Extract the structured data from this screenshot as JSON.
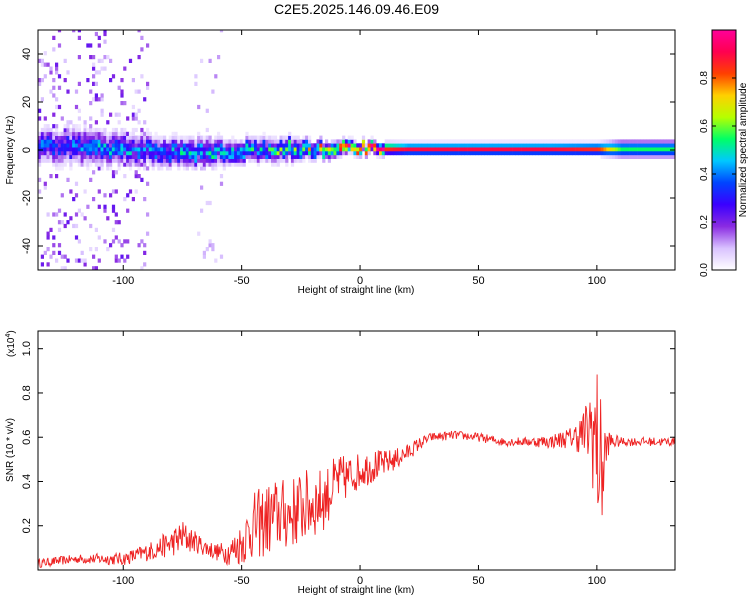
{
  "title": "C2E5.2025.146.09.46.E09",
  "chart_data": [
    {
      "type": "heatmap",
      "xlabel": "Height of straight line (km)",
      "ylabel": "Frequency (Hz)",
      "xlim": [
        -136,
        133
      ],
      "ylim": [
        -50,
        50
      ],
      "xticks": [
        -100,
        -50,
        0,
        50,
        100
      ],
      "yticks": [
        -40,
        -20,
        0,
        20,
        40
      ],
      "colorbar": {
        "label": "Normalized spectral amplitude",
        "range": [
          0,
          1
        ],
        "ticks": [
          "0.0",
          "0.2",
          "0.4",
          "0.6",
          "0.8"
        ],
        "colors": [
          "#ffffff",
          "#d9c2ff",
          "#8a2be2",
          "#3a00ff",
          "#0044ff",
          "#00c8ff",
          "#00ff66",
          "#b6ff00",
          "#ffd000",
          "#ff4000",
          "#ff0050",
          "#ff0099"
        ]
      },
      "ridge": {
        "x": [
          -130,
          -110,
          -90,
          -70,
          -50,
          -30,
          -20,
          -10,
          0,
          20,
          50,
          80,
          100,
          110,
          133
        ],
        "center_hz": [
          2,
          1,
          0,
          -1,
          0,
          1,
          0,
          0.5,
          1,
          0.5,
          0.5,
          0.5,
          0.5,
          0.5,
          0.5
        ],
        "half_width_hz": [
          6,
          6,
          5,
          5,
          4,
          4,
          3,
          2.5,
          2,
          2,
          2,
          2,
          2,
          3,
          3
        ],
        "peak_amplitude": [
          0.3,
          0.35,
          0.35,
          0.4,
          0.4,
          0.45,
          0.55,
          0.75,
          0.85,
          0.9,
          0.9,
          0.9,
          0.85,
          0.55,
          0.55
        ]
      }
    },
    {
      "type": "line",
      "xlabel": "Height of straight line (km)",
      "ylabel": "SNR (10 * v/v)",
      "multiplier_label": "(x10",
      "multiplier_exp": "4",
      "multiplier_close": ")",
      "xlim": [
        -136,
        133
      ],
      "ylim": [
        0,
        1.08
      ],
      "xticks": [
        -100,
        -50,
        0,
        50,
        100
      ],
      "yticks": [
        0.2,
        0.4,
        0.6,
        0.8,
        1.0
      ],
      "series": [
        {
          "color": "#ee2222",
          "x": [
            -136,
            -120,
            -100,
            -90,
            -80,
            -75,
            -70,
            -65,
            -60,
            -55,
            -50,
            -45,
            -40,
            -35,
            -30,
            -25,
            -20,
            -15,
            -10,
            -5,
            0,
            5,
            10,
            15,
            20,
            25,
            30,
            40,
            50,
            60,
            70,
            80,
            90,
            95,
            98,
            100,
            102,
            105,
            110,
            120,
            133
          ],
          "y": [
            0.03,
            0.05,
            0.05,
            0.08,
            0.12,
            0.15,
            0.13,
            0.1,
            0.08,
            0.08,
            0.12,
            0.2,
            0.22,
            0.25,
            0.25,
            0.28,
            0.3,
            0.32,
            0.4,
            0.42,
            0.45,
            0.47,
            0.48,
            0.5,
            0.53,
            0.57,
            0.6,
            0.61,
            0.6,
            0.58,
            0.58,
            0.58,
            0.6,
            0.62,
            0.65,
            0.55,
            0.45,
            0.58,
            0.58,
            0.58,
            0.58
          ],
          "noise": [
            0.02,
            0.02,
            0.03,
            0.04,
            0.06,
            0.08,
            0.05,
            0.04,
            0.04,
            0.06,
            0.1,
            0.15,
            0.17,
            0.17,
            0.16,
            0.17,
            0.16,
            0.14,
            0.12,
            0.1,
            0.08,
            0.08,
            0.06,
            0.05,
            0.04,
            0.03,
            0.02,
            0.02,
            0.02,
            0.02,
            0.02,
            0.03,
            0.05,
            0.12,
            0.25,
            0.4,
            0.3,
            0.05,
            0.02,
            0.02,
            0.02
          ]
        }
      ]
    }
  ]
}
